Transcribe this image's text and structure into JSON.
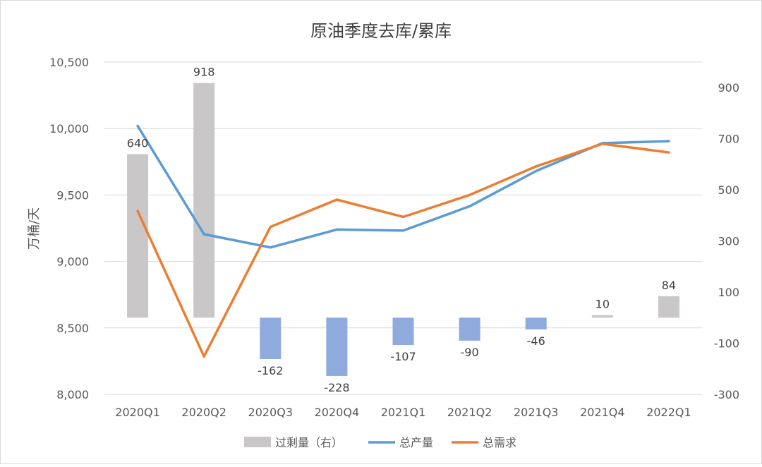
{
  "chart_data": {
    "type": "bar+line",
    "title": "原油季度去库/累库",
    "ylabel": "万桶/天",
    "categories": [
      "2020Q1",
      "2020Q2",
      "2020Q3",
      "2020Q4",
      "2021Q1",
      "2021Q2",
      "2021Q3",
      "2021Q4",
      "2022Q1"
    ],
    "left_axis": {
      "ylim": [
        8000,
        10500
      ],
      "ticks": [
        "8,000",
        "8,500",
        "9,000",
        "9,500",
        "10,000",
        "10,500"
      ],
      "tick_values": [
        8000,
        8500,
        9000,
        9500,
        10000,
        10500
      ]
    },
    "right_axis": {
      "ylim": [
        -300,
        1000
      ],
      "ticks": [
        "-300",
        "-100",
        "100",
        "300",
        "500",
        "700",
        "900"
      ],
      "tick_values": [
        -300,
        -100,
        100,
        300,
        500,
        700,
        900
      ]
    },
    "series": [
      {
        "name": "过剩量（右）",
        "type": "bar",
        "axis": "right",
        "values": [
          640,
          918,
          -162,
          -228,
          -107,
          -90,
          -46,
          10,
          84
        ],
        "labels": [
          "640",
          "918",
          "-162",
          "-228",
          "-107",
          "-90",
          "-46",
          "10",
          "84"
        ],
        "color_pos": "#c9c7c8",
        "color_neg": "#8faadc"
      },
      {
        "name": "总产量",
        "type": "line",
        "axis": "left",
        "values": [
          10020,
          9205,
          9105,
          9240,
          9232,
          9415,
          9680,
          9890,
          9905
        ],
        "color": "#5b9bd5"
      },
      {
        "name": "总需求",
        "type": "line",
        "axis": "left",
        "values": [
          9380,
          8285,
          9260,
          9465,
          9335,
          9500,
          9715,
          9885,
          9820
        ],
        "color": "#ed7d31"
      }
    ],
    "grid": true,
    "legend": "bottom"
  }
}
